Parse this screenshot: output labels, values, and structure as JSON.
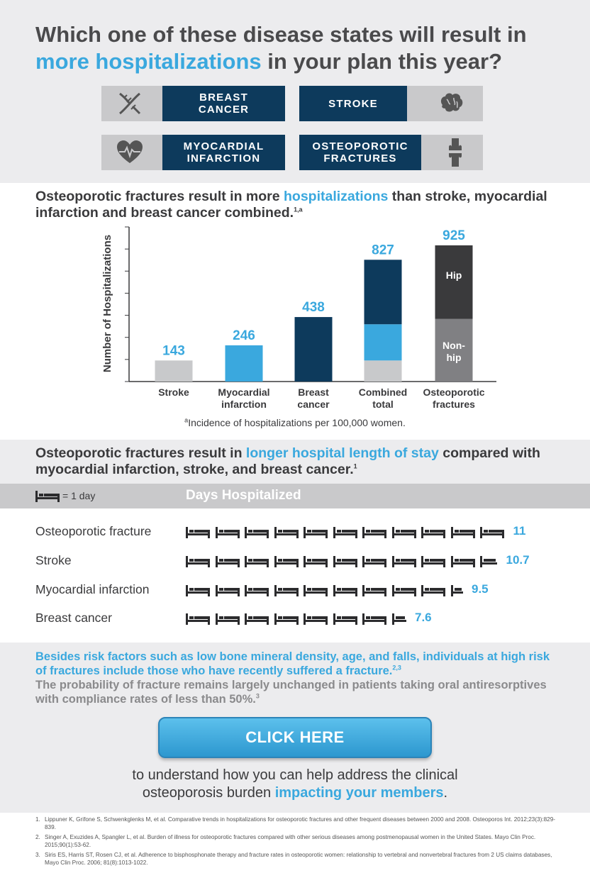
{
  "header": {
    "line1": "Which one of these disease states will result in",
    "line2_highlight": "more hospitalizations",
    "line2_rest": " in your plan this year?"
  },
  "diseases": [
    {
      "label": "BREAST\nCANCER",
      "icon": "dna-icon"
    },
    {
      "label": "STROKE",
      "icon": "brain-icon"
    },
    {
      "label": "MYOCARDIAL\nINFARCTION",
      "icon": "heart-icon"
    },
    {
      "label": "OSTEOPOROTIC\nFRACTURES",
      "icon": "knee-joint-icon"
    }
  ],
  "section2": {
    "heading_pre": "Osteoporotic fractures result in more ",
    "heading_highlight": "hospitalizations",
    "heading_post": " than stroke, myocardial infarction and breast cancer combined.",
    "heading_sup": "1,a",
    "footnote_sup": "a",
    "footnote": "Incidence of hospitalizations per 100,000 women."
  },
  "chart_data": {
    "type": "bar",
    "ylabel": "Number of Hospitalizations",
    "ylim": [
      0,
      1050
    ],
    "categories": [
      "Stroke",
      "Myocardial\ninfarction",
      "Breast\ncancer",
      "Combined\ntotal",
      "Osteoporotic\nfractures"
    ],
    "values": [
      143,
      246,
      438,
      827,
      925
    ],
    "value_labels": [
      "143",
      "246",
      "438",
      "827",
      "925"
    ],
    "stacks": {
      "Combined total": [
        {
          "name": "Stroke",
          "value": 143
        },
        {
          "name": "Myocardial infarction",
          "value": 246
        },
        {
          "name": "Breast cancer",
          "value": 438
        }
      ],
      "Osteoporotic fractures": [
        {
          "name": "Non-hip",
          "value": 425
        },
        {
          "name": "Hip",
          "value": 500
        }
      ]
    },
    "segment_labels": {
      "hip": "Hip",
      "nonhip": "Non-\nhip"
    },
    "colors": {
      "stroke": "#c8c9cb",
      "mi": "#3aa8de",
      "breast": "#0d3a5c",
      "hip": "#3a3a3c",
      "nonhip": "#808083",
      "value_label": "#3aa8de"
    },
    "grid": false
  },
  "section3": {
    "heading_pre": "Osteoporotic fractures result in ",
    "heading_highlight": "longer hospital length of stay",
    "heading_post": " compared with myocardial infarction, stroke, and breast cancer.",
    "heading_sup": "1"
  },
  "days": {
    "legend": "= 1 day",
    "title": "Days Hospitalized",
    "rows": [
      {
        "label": "Osteoporotic fracture",
        "days": 11,
        "value": "11"
      },
      {
        "label": "Stroke",
        "days": 10.7,
        "value": "10.7"
      },
      {
        "label": "Myocardial infarction",
        "days": 9.5,
        "value": "9.5"
      },
      {
        "label": "Breast cancer",
        "days": 7.6,
        "value": "7.6"
      }
    ]
  },
  "section5": {
    "note1": "Besides risk factors such as low bone mineral density, age, and falls, individuals at high risk of fractures include those who have recently suffered a fracture.",
    "note1_sup": "2,3",
    "note2": "The probability of fracture remains largely unchanged in patients taking oral antiresorptives with compliance rates of less than 50%.",
    "note2_sup": "3",
    "cta": "CLICK HERE",
    "cta_text_1": "to understand how you can help address the clinical",
    "cta_text_2": "osteoporosis burden ",
    "cta_text_highlight": "impacting your members",
    "cta_text_end": "."
  },
  "references": [
    {
      "n": "1.",
      "text": "Lippuner K, Grifone S, Schwenkglenks M, et al. Comparative trends in hospitalizations for osteoporotic fractures and other frequent diseases between 2000 and 2008. Osteoporos Int. 2012;23(3):829-839."
    },
    {
      "n": "2.",
      "text": "Singer A, Exuzides A, Spangler L, et al. Burden of illness for osteoporotic fractures compared with other serious diseases among postmenopausal women in the United States. Mayo Clin Proc. 2015;90(1):53-62."
    },
    {
      "n": "3.",
      "text": "Siris ES, Harris ST, Rosen CJ, et al. Adherence to bisphosphonate therapy and fracture rates in osteoporotic women: relationship to vertebral and nonvertebral fractures from 2 US claims databases, Mayo Clin Proc. 2006; 81(8):1013-1022."
    }
  ]
}
